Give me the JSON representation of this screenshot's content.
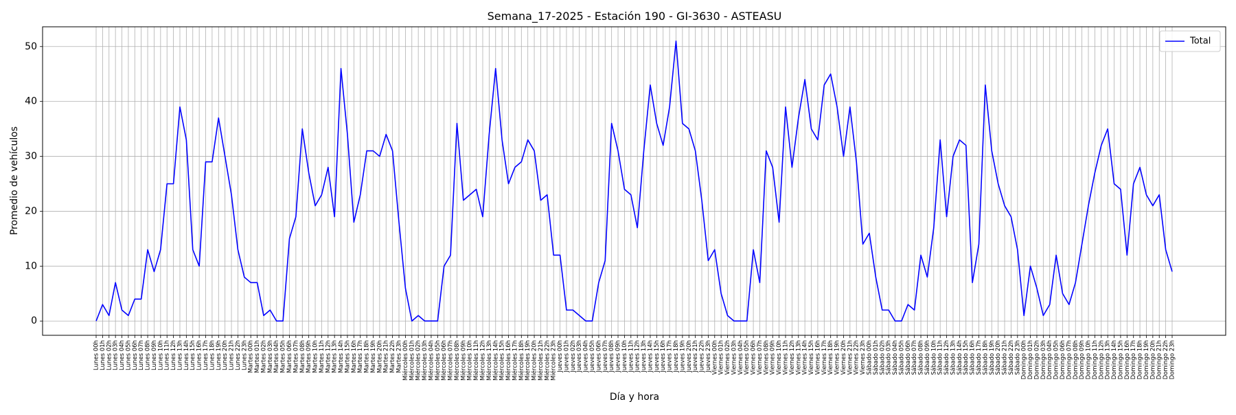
{
  "chart_data": {
    "type": "line",
    "title": "Semana_17-2025 - Estación 190 - GI-3630  - ASTEASU",
    "xlabel": "Día y hora",
    "ylabel": "Promedio de vehículos",
    "ylim": [
      -2.6,
      53.6
    ],
    "yticks": [
      0,
      10,
      20,
      30,
      40,
      50
    ],
    "grid": true,
    "legend_position": "top-right",
    "days": [
      "Lunes",
      "Martes",
      "Miércoles",
      "Jueves",
      "Viernes",
      "Sábado",
      "Domingo"
    ],
    "hours": [
      "00h",
      "01h",
      "02h",
      "03h",
      "04h",
      "05h",
      "06h",
      "07h",
      "08h",
      "09h",
      "10h",
      "11h",
      "12h",
      "13h",
      "14h",
      "15h",
      "16h",
      "17h",
      "18h",
      "19h",
      "20h",
      "21h",
      "22h",
      "23h"
    ],
    "series": [
      {
        "name": "Total",
        "color": "#0000ff",
        "values": [
          0,
          3,
          1,
          7,
          2,
          1,
          4,
          4,
          13,
          9,
          13,
          25,
          25,
          39,
          33,
          13,
          10,
          29,
          29,
          37,
          30,
          23,
          13,
          8,
          7,
          7,
          1,
          2,
          0,
          0,
          15,
          19,
          35,
          27,
          21,
          23,
          28,
          19,
          46,
          34,
          18,
          23,
          31,
          31,
          30,
          34,
          31,
          18,
          6,
          0,
          1,
          0,
          0,
          0,
          10,
          12,
          36,
          22,
          23,
          24,
          19,
          34,
          46,
          33,
          25,
          28,
          29,
          33,
          31,
          22,
          23,
          12,
          12,
          2,
          2,
          1,
          0,
          0,
          7,
          11,
          36,
          31,
          24,
          23,
          17,
          31,
          43,
          36,
          32,
          39,
          51,
          36,
          35,
          31,
          22,
          11,
          13,
          5,
          1,
          0,
          0,
          0,
          13,
          7,
          31,
          28,
          18,
          39,
          28,
          37,
          44,
          35,
          33,
          43,
          45,
          39,
          30,
          39,
          29,
          14,
          16,
          8,
          2,
          2,
          0,
          0,
          3,
          2,
          12,
          8,
          17,
          33,
          19,
          30,
          33,
          32,
          7,
          14,
          43,
          31,
          25,
          21,
          19,
          13,
          1,
          10,
          6,
          1,
          3,
          12,
          5,
          3,
          7,
          14,
          21,
          27,
          32,
          35,
          25,
          24,
          12,
          25,
          28,
          23,
          21,
          23,
          13,
          9
        ]
      }
    ]
  }
}
